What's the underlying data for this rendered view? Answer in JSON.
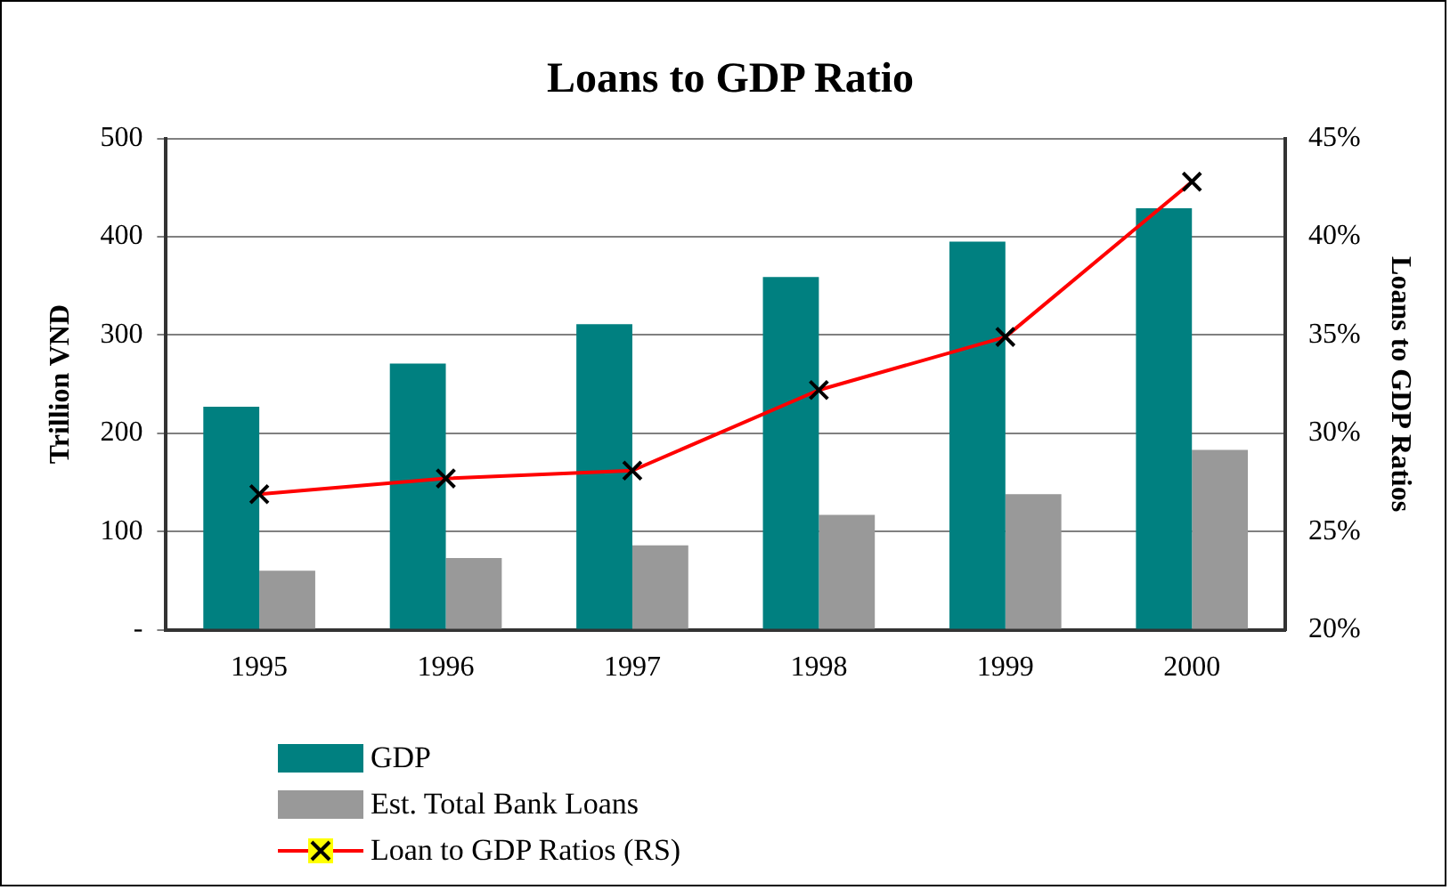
{
  "chart_data": {
    "type": "bar",
    "title": "Loans to GDP Ratio",
    "ylabel": "Trillion VND",
    "y2label": "Loans to GDP Ratios",
    "categories": [
      "1995",
      "1996",
      "1997",
      "1998",
      "1999",
      "2000"
    ],
    "series": [
      {
        "name": "GDP",
        "color": "#008080",
        "values": [
          227,
          271,
          311,
          359,
          395,
          429
        ]
      },
      {
        "name": "Est. Total Bank Loans",
        "color": "#999999",
        "values": [
          60,
          73,
          86,
          117,
          138,
          183
        ]
      },
      {
        "name": "Loan to GDP Ratios (RS)",
        "type": "line",
        "axis": "y2",
        "color": "#ff0000",
        "marker": "cross",
        "values": [
          26.9,
          27.7,
          28.1,
          32.2,
          34.9,
          42.8
        ]
      }
    ],
    "ylim": [
      0,
      500
    ],
    "yticks": [
      {
        "value": 0,
        "label": "-"
      },
      100,
      200,
      300,
      400,
      500
    ],
    "y2lim": [
      20,
      45
    ],
    "y2ticks": [
      {
        "value": 20,
        "label": "20%"
      },
      {
        "value": 25,
        "label": "25%"
      },
      {
        "value": 30,
        "label": "30%"
      },
      {
        "value": 35,
        "label": "35%"
      },
      {
        "value": 40,
        "label": "40%"
      },
      {
        "value": 45,
        "label": "45%"
      }
    ],
    "grid": "y",
    "legend": "bottom"
  }
}
